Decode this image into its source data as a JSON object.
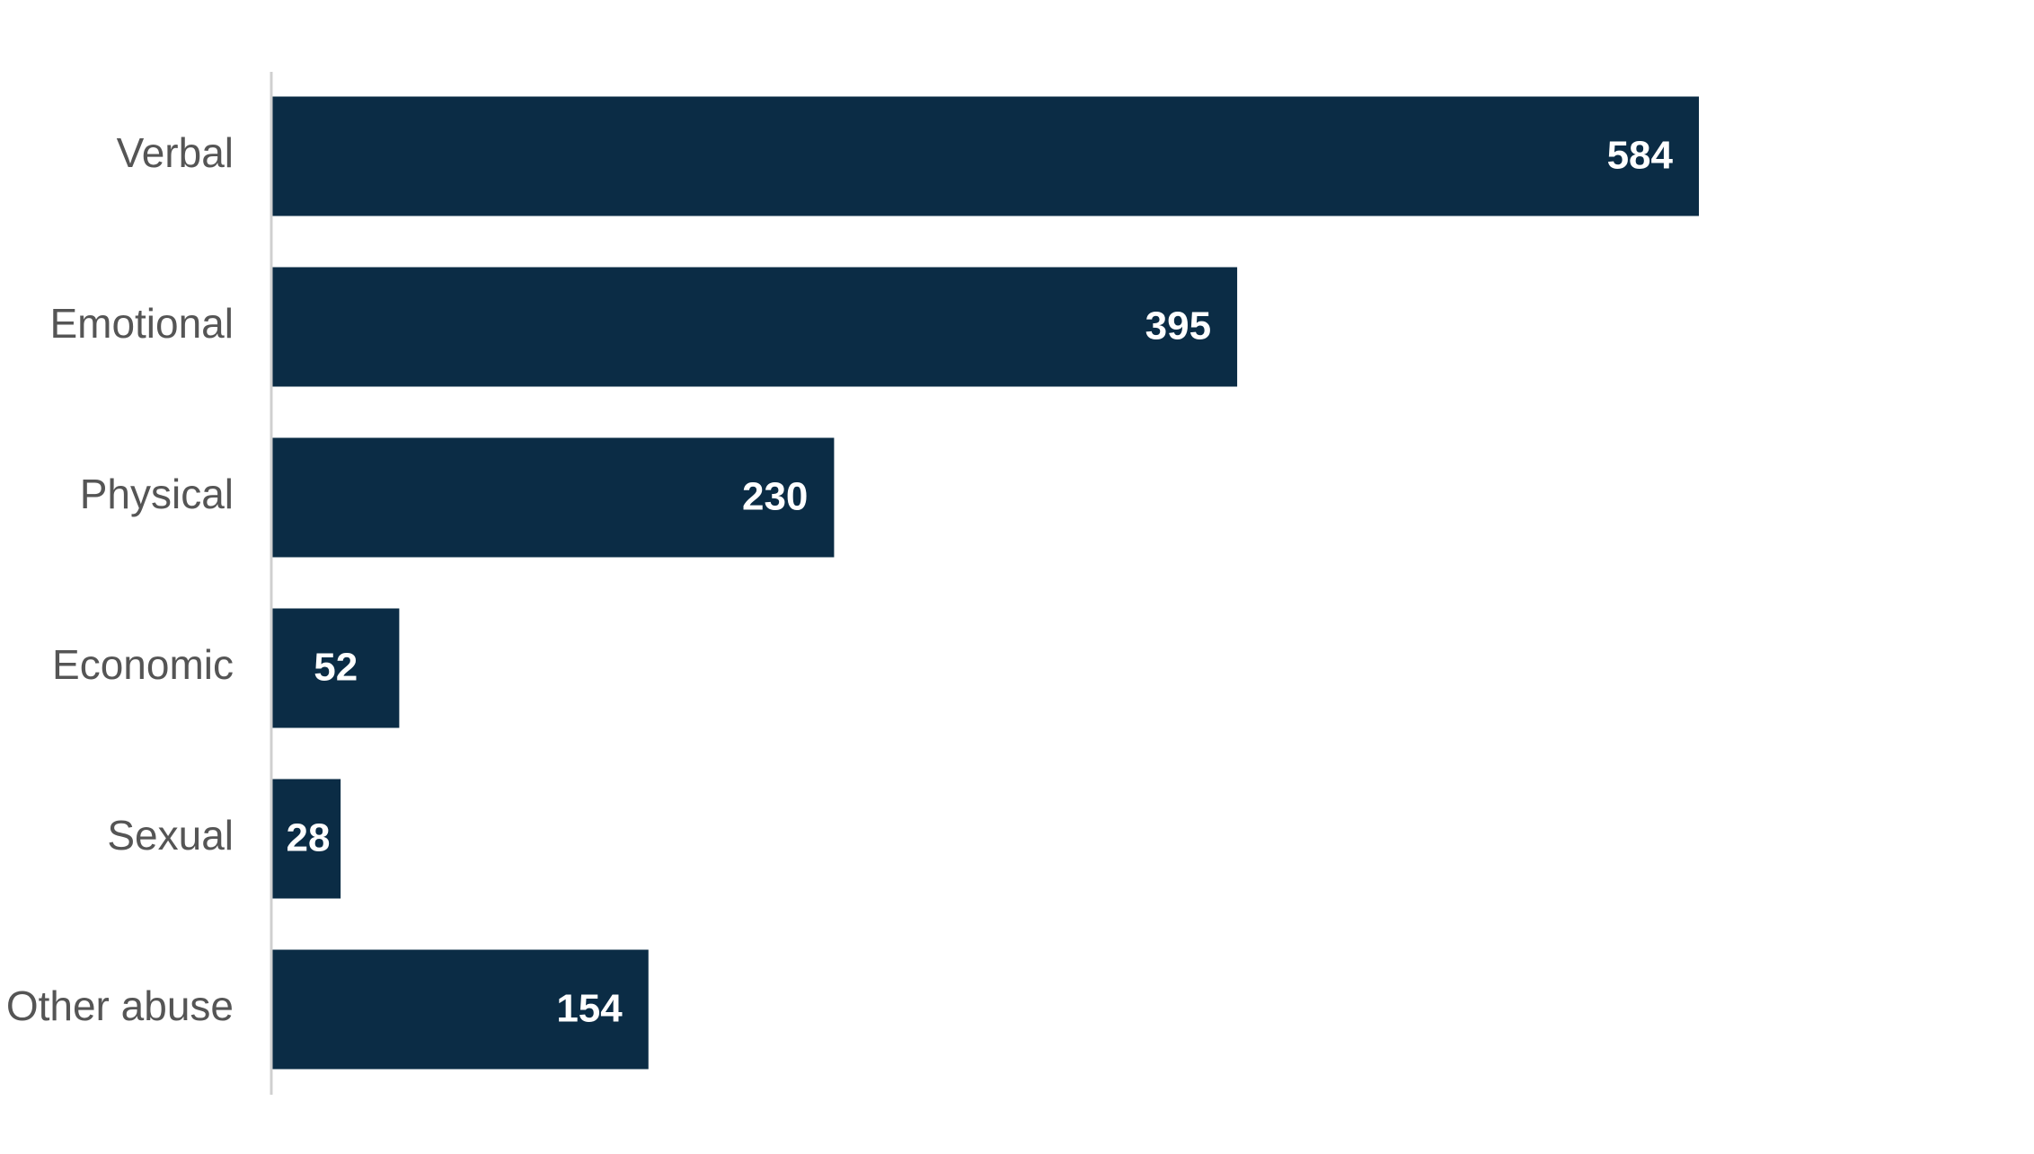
{
  "chart_data": {
    "type": "bar",
    "orientation": "horizontal",
    "categories": [
      "Verbal",
      "Emotional",
      "Physical",
      "Economic",
      "Sexual",
      "Other abuse"
    ],
    "values": [
      584,
      395,
      230,
      52,
      28,
      154
    ],
    "color": "#0b2c45"
  }
}
